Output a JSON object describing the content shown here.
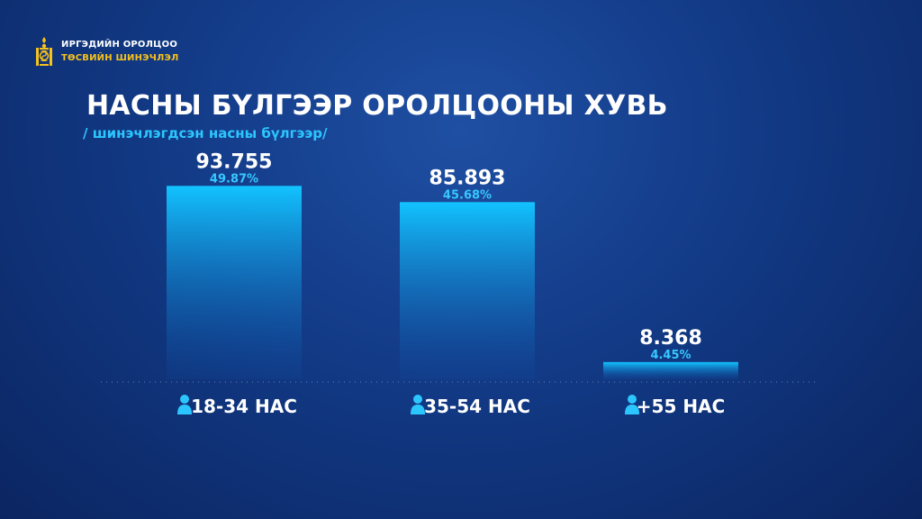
{
  "logo": {
    "line1": "ИРГЭДИЙН ОРОЛЦОО",
    "line2": "ТӨСВИЙН ШИНЭЧЛЭЛ",
    "icon": "soyombo-icon",
    "color_gold": "#f6c21c"
  },
  "colors": {
    "background": "#123a86",
    "bar_top": "#12c3ff",
    "bar_bottom": "#0f4fa6",
    "accent": "#2cc6ff"
  },
  "chart_data": {
    "type": "bar",
    "title": "НАСНЫ БҮЛГЭЭР ОРОЛЦООНЫ ХУВЬ",
    "subtitle": "/ шинэчлэгдсэн насны бүлгээр/",
    "categories": [
      "18-34 НАС",
      "35-54 НАС",
      "+55 НАС"
    ],
    "category_icon": "person-icon",
    "values": [
      93.755,
      85.893,
      8.368
    ],
    "value_labels": [
      "93.755",
      "85.893",
      "8.368"
    ],
    "percent_labels": [
      "49.87%",
      "45.68%",
      "4.45%"
    ],
    "ylim": [
      0,
      100
    ],
    "grid": false,
    "legend": "none"
  }
}
